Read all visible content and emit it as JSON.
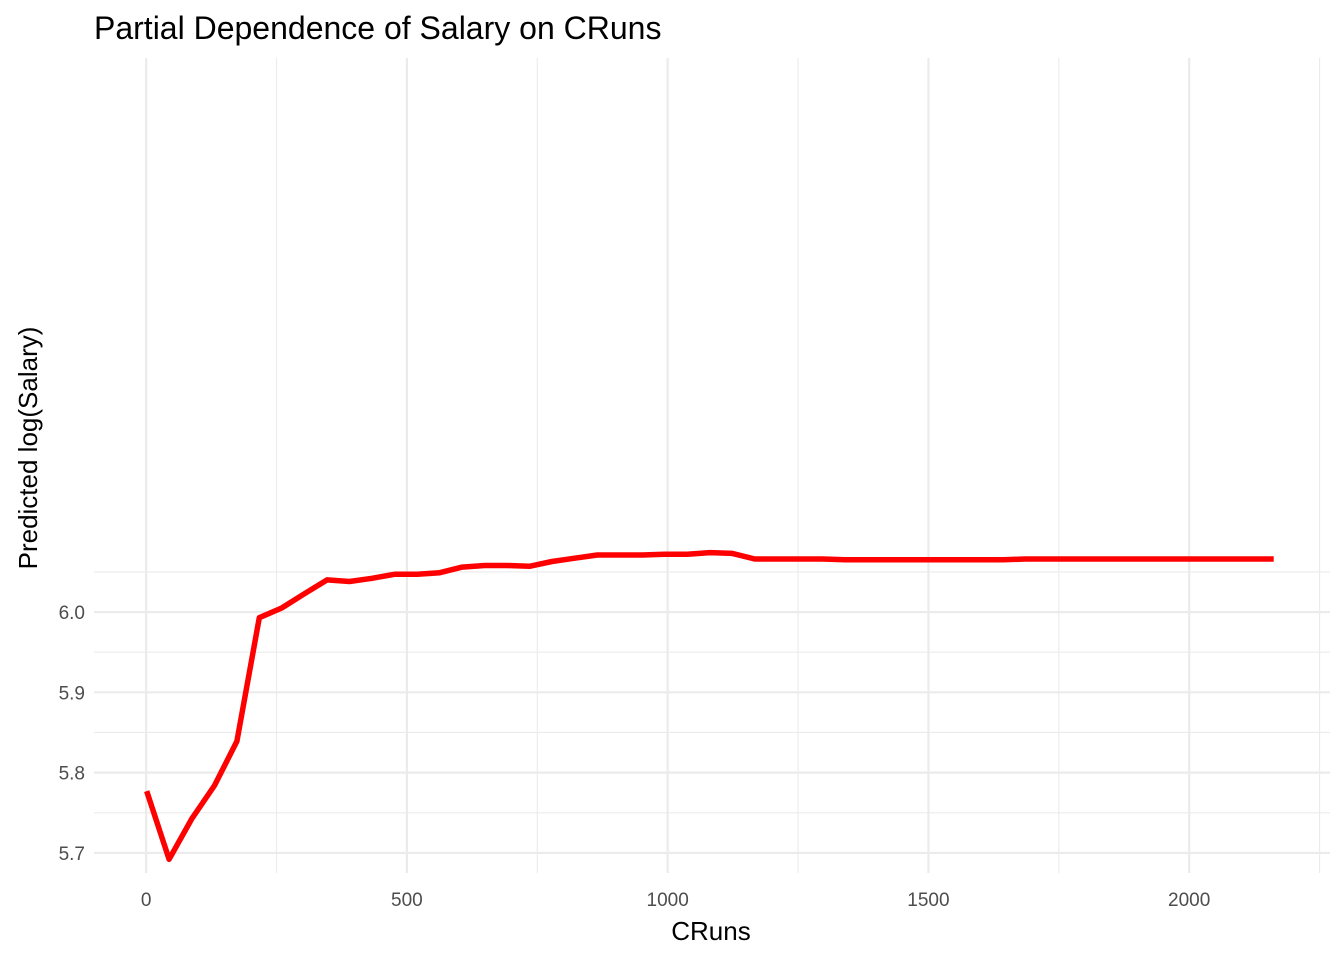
{
  "chart_data": {
    "type": "line",
    "title": "Partial Dependence of Salary on CRuns",
    "xlabel": "CRuns",
    "ylabel": "Predicted log(Salary)",
    "xlim": [
      -100,
      2270
    ],
    "ylim": [
      5.675,
      6.69
    ],
    "x_ticks": [
      0,
      500,
      1000,
      1500,
      2000
    ],
    "x_tick_labels": [
      "0",
      "500",
      "1000",
      "1500",
      "2000"
    ],
    "y_ticks": [
      5.7,
      5.8,
      5.9,
      6.0
    ],
    "y_tick_labels": [
      "5.7",
      "5.8",
      "5.9",
      "6.0"
    ],
    "grid": true,
    "series": [
      {
        "color": "#ff0000",
        "x": [
          1,
          44,
          88,
          131,
          174,
          217,
          260,
          304,
          347,
          390,
          433,
          476,
          520,
          563,
          606,
          649,
          692,
          735,
          778,
          822,
          865,
          908,
          951,
          994,
          1038,
          1081,
          1124,
          1167,
          1210,
          1254,
          1297,
          1340,
          1383,
          1426,
          1470,
          1513,
          1556,
          1600,
          1643,
          1686,
          1730,
          1773,
          1816,
          1859,
          1902,
          1946,
          1989,
          2032,
          2075,
          2118,
          2162
        ],
        "values": [
          5.777,
          5.692,
          5.743,
          5.784,
          5.839,
          5.993,
          6.005,
          6.023,
          6.04,
          6.038,
          6.042,
          6.047,
          6.047,
          6.049,
          6.056,
          6.058,
          6.058,
          6.057,
          6.063,
          6.067,
          6.071,
          6.071,
          6.071,
          6.072,
          6.072,
          6.074,
          6.073,
          6.066,
          6.066,
          6.066,
          6.066,
          6.065,
          6.065,
          6.065,
          6.065,
          6.065,
          6.065,
          6.065,
          6.065,
          6.066,
          6.066,
          6.066,
          6.066,
          6.066,
          6.066,
          6.066,
          6.066,
          6.066,
          6.066,
          6.066,
          6.066
        ]
      }
    ]
  }
}
